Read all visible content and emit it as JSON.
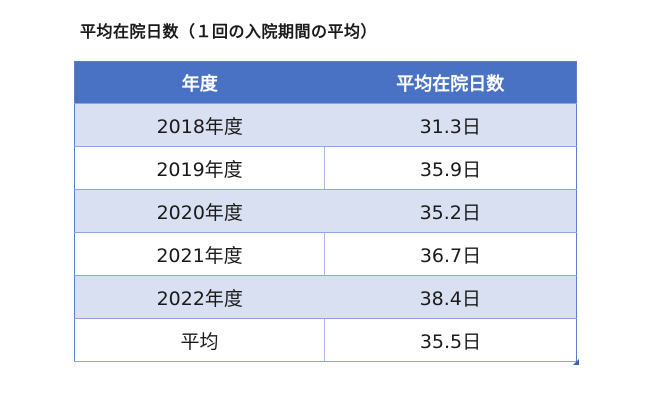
{
  "title": "平均在院日数（１回の入院期間の平均）",
  "table": {
    "headers": [
      "年度",
      "平均在院日数"
    ],
    "rows": [
      {
        "year": "2018年度",
        "days": "31.3日"
      },
      {
        "year": "2019年度",
        "days": "35.9日"
      },
      {
        "year": "2020年度",
        "days": "35.2日"
      },
      {
        "year": "2021年度",
        "days": "36.7日"
      },
      {
        "year": "2022年度",
        "days": "38.4日"
      },
      {
        "year": "平均",
        "days": "35.5日"
      }
    ]
  },
  "colors": {
    "header_bg": "#4a72c4",
    "header_text": "#ffffff",
    "band_bg": "#d9e0f2",
    "border": "#8aa6dc"
  }
}
